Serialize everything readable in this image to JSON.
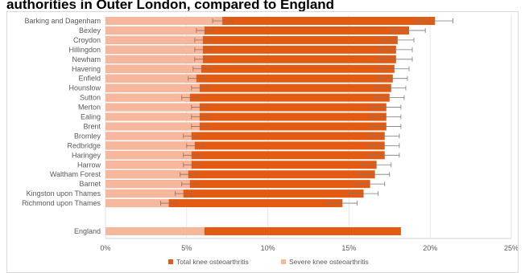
{
  "title": "authorities in Outer London, compared to England",
  "chart_data": {
    "type": "bar",
    "orientation": "horizontal",
    "categories": [
      "Barking and Dagenham",
      "Bexley",
      "Croydon",
      "Hillingdon",
      "Newham",
      "Havering",
      "Enfield",
      "Hounslow",
      "Sutton",
      "Merton",
      "Ealing",
      "Brent",
      "Bromley",
      "Redbridge",
      "Haringey",
      "Harrow",
      "Waltham Forest",
      "Barnet",
      "Kingston upon Thames",
      "Richmond upon Thames",
      "England"
    ],
    "series": [
      {
        "name": "Total knee osteoarthritis",
        "color": "#e35a12",
        "values": [
          20.3,
          18.7,
          18.0,
          17.9,
          17.9,
          17.8,
          17.7,
          17.6,
          17.5,
          17.3,
          17.3,
          17.3,
          17.2,
          17.2,
          17.2,
          16.7,
          16.6,
          16.3,
          15.9,
          14.6,
          18.2
        ],
        "error": [
          1.1,
          1.0,
          1.0,
          1.0,
          1.0,
          0.9,
          0.9,
          0.9,
          0.9,
          0.9,
          0.9,
          0.9,
          0.9,
          0.9,
          0.9,
          0.9,
          0.9,
          0.9,
          0.9,
          0.9,
          null
        ]
      },
      {
        "name": "Severe knee osteoarthritis",
        "color": "#f6b79d",
        "values": [
          7.2,
          6.1,
          6.0,
          6.0,
          6.0,
          5.9,
          5.6,
          5.8,
          5.2,
          5.8,
          5.8,
          5.8,
          5.3,
          5.5,
          5.3,
          5.3,
          5.1,
          5.2,
          4.8,
          3.9,
          6.1
        ],
        "error": [
          0.6,
          0.5,
          0.5,
          0.5,
          0.5,
          0.5,
          0.5,
          0.5,
          0.5,
          0.5,
          0.5,
          0.5,
          0.5,
          0.5,
          0.5,
          0.5,
          0.5,
          0.5,
          0.5,
          0.5,
          null
        ]
      }
    ],
    "xlim": [
      0,
      25
    ],
    "x_ticks": [
      "0%",
      "5%",
      "10%",
      "15%",
      "20%",
      "25%"
    ],
    "grid": "vertical",
    "legend": "bottom"
  }
}
